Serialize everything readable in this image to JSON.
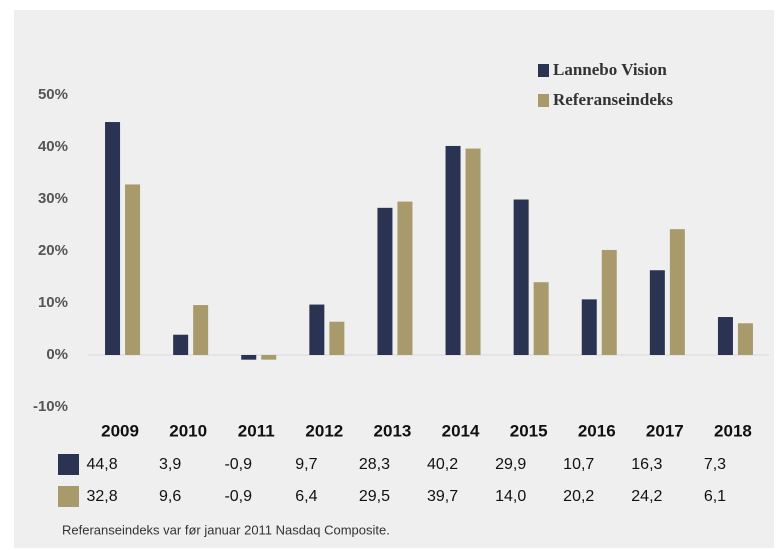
{
  "chart_data": {
    "type": "bar",
    "categories": [
      "2009",
      "2010",
      "2011",
      "2012",
      "2013",
      "2014",
      "2015",
      "2016",
      "2017",
      "2018"
    ],
    "series": [
      {
        "name": "Lannebo Vision",
        "color": "#2b3352",
        "values": [
          44.8,
          3.9,
          -0.9,
          9.7,
          28.3,
          40.2,
          29.9,
          10.7,
          16.3,
          7.3
        ],
        "value_labels": [
          "44,8",
          "3,9",
          "-0,9",
          "9,7",
          "28,3",
          "40,2",
          "29,9",
          "10,7",
          "16,3",
          "7,3"
        ]
      },
      {
        "name": "Referanseindeks",
        "color": "#a99a6c",
        "values": [
          32.8,
          9.6,
          -0.9,
          6.4,
          29.5,
          39.7,
          14.0,
          20.2,
          24.2,
          6.1
        ],
        "value_labels": [
          "32,8",
          "9,6",
          "-0,9",
          "6,4",
          "29,5",
          "39,7",
          "14,0",
          "20,2",
          "24,2",
          "6,1"
        ]
      }
    ],
    "ylim": [
      -10,
      50
    ],
    "yticks": [
      {
        "value": -10,
        "label": "-10%"
      },
      {
        "value": 0,
        "label": "0%"
      },
      {
        "value": 10,
        "label": "10%"
      },
      {
        "value": 20,
        "label": "20%"
      },
      {
        "value": 30,
        "label": "30%"
      },
      {
        "value": 40,
        "label": "40%"
      },
      {
        "value": 50,
        "label": "50%"
      }
    ],
    "grid": false,
    "legend": "top-right",
    "footnote": "Referanseindeks var før januar 2011 Nasdaq Composite."
  }
}
